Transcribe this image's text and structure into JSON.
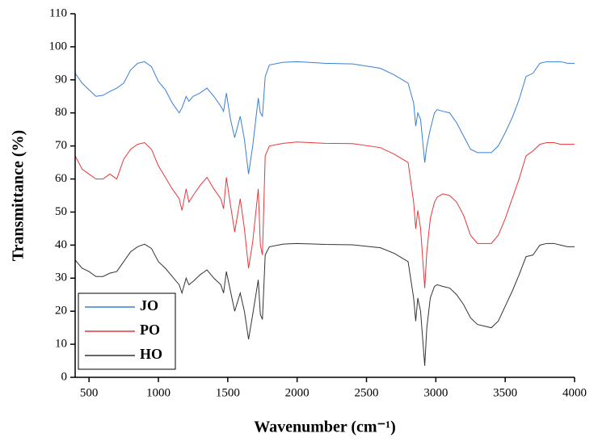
{
  "chart_data": {
    "type": "line",
    "xlabel": "Wavenumber (cm⁻¹)",
    "ylabel": "Transmittance (%)",
    "x": [
      400,
      450,
      500,
      550,
      600,
      650,
      700,
      750,
      800,
      850,
      900,
      950,
      1000,
      1050,
      1100,
      1150,
      1170,
      1200,
      1220,
      1250,
      1300,
      1350,
      1400,
      1450,
      1470,
      1490,
      1520,
      1550,
      1590,
      1620,
      1650,
      1680,
      1720,
      1735,
      1750,
      1770,
      1800,
      1900,
      2000,
      2200,
      2400,
      2600,
      2700,
      2800,
      2840,
      2855,
      2870,
      2890,
      2920,
      2935,
      2960,
      2990,
      3010,
      3050,
      3100,
      3150,
      3200,
      3250,
      3300,
      3350,
      3400,
      3450,
      3500,
      3550,
      3600,
      3650,
      3700,
      3750,
      3800,
      3850,
      3900,
      3950,
      4000
    ],
    "series": [
      {
        "name": "JO",
        "color": "#3a7fd5",
        "values": [
          92,
          89,
          87,
          85,
          85.3,
          86.5,
          87.5,
          89,
          93,
          95,
          95.5,
          94,
          89.5,
          87,
          83,
          80,
          81.5,
          85,
          83.5,
          85,
          86,
          87.5,
          85,
          82,
          80.5,
          86,
          78,
          72.5,
          79,
          72,
          61.5,
          70,
          84.5,
          80,
          79,
          91,
          94.5,
          95.3,
          95.5,
          95,
          94.8,
          93.5,
          91.5,
          89,
          83,
          76,
          80,
          78,
          65,
          70,
          75,
          80,
          81,
          80.5,
          80,
          77,
          73,
          69,
          68,
          68,
          68,
          70,
          74,
          78.5,
          84,
          91,
          92,
          95,
          95.5,
          95.5,
          95.5,
          95,
          95
        ]
      },
      {
        "name": "PO",
        "color": "#e8373b",
        "values": [
          67,
          63,
          61.5,
          60,
          60,
          61.5,
          60,
          66,
          69,
          70.5,
          71,
          69,
          64,
          60.5,
          57,
          54,
          50.5,
          57,
          53,
          55,
          58,
          60.5,
          57,
          54,
          51,
          60.5,
          52,
          44,
          54,
          45,
          33,
          41,
          57,
          40,
          37,
          67,
          70,
          70.8,
          71.2,
          70.8,
          70.7,
          69.5,
          67.5,
          65,
          53,
          45,
          50.5,
          45,
          27,
          38,
          48,
          53,
          54.5,
          55.5,
          55,
          53,
          49,
          43,
          40.5,
          40.5,
          40.5,
          43,
          48,
          54,
          60,
          67,
          68.5,
          70.5,
          71,
          71,
          70.5,
          70.5,
          70.5
        ]
      },
      {
        "name": "HO",
        "color": "#333333",
        "values": [
          35.5,
          33,
          32,
          30.5,
          30.5,
          31.5,
          32,
          35,
          38,
          39.5,
          40.3,
          39,
          35,
          33,
          30.5,
          28,
          25.5,
          30,
          28,
          29,
          31,
          32.5,
          30,
          28,
          25.5,
          32,
          26,
          20,
          25.5,
          20,
          11.5,
          19,
          29.5,
          19,
          17.5,
          37,
          39.5,
          40.3,
          40.5,
          40.2,
          40.1,
          39.2,
          37.5,
          35,
          24,
          17,
          24,
          20,
          3.5,
          15,
          24,
          27.5,
          28,
          27.5,
          27,
          25,
          22,
          18,
          16,
          15.5,
          15,
          17,
          21.5,
          26,
          31,
          36.5,
          37,
          40,
          40.5,
          40.5,
          40,
          39.5,
          39.5
        ]
      }
    ],
    "xlim": [
      400,
      4000
    ],
    "xticks": [
      500,
      1000,
      1500,
      2000,
      2500,
      3000,
      3500,
      4000
    ],
    "ylim": [
      0,
      110
    ],
    "yticks": [
      0,
      10,
      20,
      30,
      40,
      50,
      60,
      70,
      80,
      90,
      100,
      110
    ],
    "legend": "lower left"
  }
}
